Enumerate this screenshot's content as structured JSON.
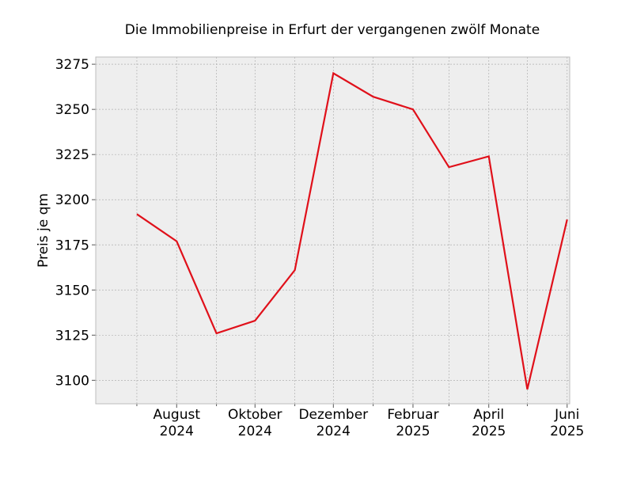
{
  "chart_data": {
    "type": "line",
    "title": "Die Immobilienpreise in Erfurt der vergangenen zwölf Monate",
    "xlabel": "",
    "ylabel": "Preis je qm",
    "x": [
      "2024-07",
      "2024-08",
      "2024-09",
      "2024-10",
      "2024-11",
      "2024-12",
      "2025-01",
      "2025-02",
      "2025-03",
      "2025-04",
      "2025-05",
      "2025-06"
    ],
    "x_tick_labels": [
      {
        "month": "2024-08",
        "line1": "August",
        "line2": "2024"
      },
      {
        "month": "2024-10",
        "line1": "Oktober",
        "line2": "2024"
      },
      {
        "month": "2024-12",
        "line1": "Dezember",
        "line2": "2024"
      },
      {
        "month": "2025-02",
        "line1": "Februar",
        "line2": "2025"
      },
      {
        "month": "2025-04",
        "line1": "April",
        "line2": "2025"
      },
      {
        "month": "2025-06",
        "line1": "Juni",
        "line2": "2025"
      }
    ],
    "series": [
      {
        "values": [
          3192,
          3177,
          3126,
          3133,
          3161,
          3270,
          3257,
          3250,
          3218,
          3224,
          3095,
          3189
        ],
        "color": "#e0101a"
      }
    ],
    "xlim": [
      "2024-06-13",
      "2025-06-17"
    ],
    "ylim": [
      3087,
      3279
    ],
    "y_ticks": [
      3100,
      3125,
      3150,
      3175,
      3200,
      3225,
      3250,
      3275
    ],
    "grid": true,
    "legend": "none",
    "colors": {
      "plot_background": "#eeeeee",
      "grid": "#b0b0b0",
      "frame": "#bcbcbc",
      "line": "#e0101a"
    }
  }
}
